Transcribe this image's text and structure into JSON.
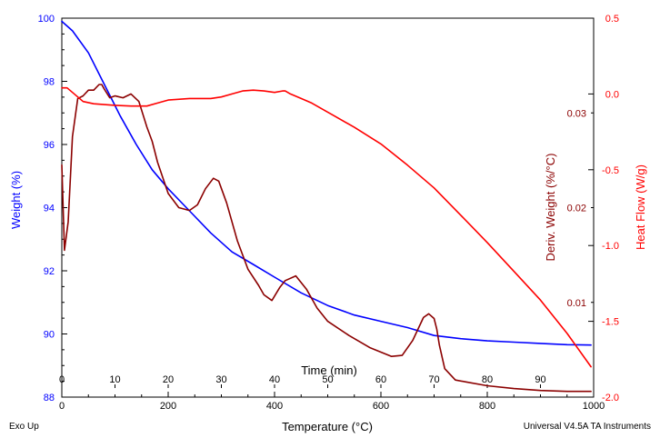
{
  "chart_data": {
    "type": "line",
    "title": "",
    "xlabel": "Temperature (°C)",
    "xlim": [
      0,
      1000
    ],
    "xticks": [
      0,
      200,
      400,
      600,
      800,
      1000
    ],
    "time_axis": {
      "label": "Time (min)",
      "ticks": [
        0,
        10,
        20,
        30,
        40,
        50,
        60,
        70,
        80,
        90
      ],
      "tick_positions_temperature": [
        0,
        100,
        200,
        300,
        400,
        500,
        600,
        700,
        800,
        900
      ]
    },
    "axes": {
      "weight": {
        "label": "Weight (%)",
        "ylim": [
          88,
          100
        ],
        "ticks": [
          88,
          90,
          92,
          94,
          96,
          98,
          100
        ],
        "color": "#0000ff"
      },
      "deriv": {
        "label": "Deriv. Weight (%/°C)",
        "ylim": [
          0.0,
          0.04
        ],
        "ticks": [
          0.01,
          0.02,
          0.03
        ],
        "color": "#8b0000"
      },
      "heat": {
        "label": "Heat Flow (W/g)",
        "ylim": [
          -2.0,
          0.5
        ],
        "ticks": [
          0.5,
          0.0,
          -0.5,
          -1.0,
          -1.5,
          -2.0
        ],
        "tick_labels": [
          "0.5",
          "0.0",
          "-0.5",
          "-1.0",
          "-1.5",
          "-2.0"
        ],
        "color": "#ff0000"
      }
    },
    "series": [
      {
        "name": "Weight",
        "axis": "weight",
        "color": "#0000ff",
        "x": [
          0,
          20,
          50,
          80,
          110,
          140,
          170,
          200,
          240,
          280,
          320,
          360,
          400,
          450,
          500,
          550,
          600,
          650,
          700,
          750,
          800,
          850,
          900,
          950,
          995
        ],
        "y": [
          99.9,
          99.6,
          98.9,
          97.9,
          96.9,
          96.0,
          95.2,
          94.6,
          93.9,
          93.2,
          92.6,
          92.2,
          91.8,
          91.3,
          90.9,
          90.6,
          90.4,
          90.2,
          89.95,
          89.85,
          89.78,
          89.74,
          89.7,
          89.66,
          89.65
        ]
      },
      {
        "name": "Deriv. Weight",
        "axis": "deriv",
        "color": "#8b0000",
        "x": [
          0,
          5,
          12,
          20,
          30,
          40,
          50,
          60,
          70,
          75,
          80,
          90,
          100,
          115,
          130,
          145,
          160,
          170,
          180,
          200,
          220,
          240,
          255,
          270,
          285,
          295,
          310,
          330,
          350,
          370,
          380,
          395,
          410,
          420,
          440,
          460,
          480,
          500,
          540,
          580,
          620,
          640,
          660,
          680,
          690,
          700,
          705,
          710,
          720,
          740,
          760,
          800,
          850,
          900,
          950,
          995
        ],
        "y": [
          0.0245,
          0.0155,
          0.0185,
          0.0275,
          0.0315,
          0.0318,
          0.0324,
          0.0324,
          0.033,
          0.033,
          0.0325,
          0.0316,
          0.0318,
          0.0316,
          0.032,
          0.0312,
          0.0285,
          0.027,
          0.0248,
          0.0215,
          0.02,
          0.0197,
          0.0203,
          0.022,
          0.0231,
          0.0228,
          0.0205,
          0.0165,
          0.0135,
          0.0118,
          0.0108,
          0.0102,
          0.0116,
          0.0123,
          0.0128,
          0.0114,
          0.0094,
          0.008,
          0.0065,
          0.0052,
          0.0043,
          0.0044,
          0.006,
          0.0084,
          0.0088,
          0.0083,
          0.0072,
          0.0055,
          0.003,
          0.0018,
          0.0016,
          0.0012,
          0.0009,
          0.0007,
          0.0006,
          0.0006
        ]
      },
      {
        "name": "Heat Flow",
        "axis": "heat",
        "color": "#ff0000",
        "x": [
          0,
          10,
          20,
          40,
          60,
          80,
          100,
          130,
          160,
          180,
          200,
          240,
          280,
          300,
          320,
          340,
          360,
          380,
          400,
          415,
          420,
          430,
          450,
          470,
          500,
          550,
          600,
          650,
          700,
          750,
          800,
          850,
          900,
          950,
          995
        ],
        "y": [
          0.04,
          0.04,
          0.01,
          -0.05,
          -0.065,
          -0.07,
          -0.075,
          -0.08,
          -0.08,
          -0.06,
          -0.04,
          -0.03,
          -0.03,
          -0.02,
          0.0,
          0.02,
          0.025,
          0.02,
          0.01,
          0.02,
          0.02,
          0.0,
          -0.03,
          -0.06,
          -0.12,
          -0.22,
          -0.33,
          -0.47,
          -0.62,
          -0.8,
          -0.98,
          -1.17,
          -1.36,
          -1.58,
          -1.8
        ]
      }
    ],
    "annotations": {
      "bottom_left": "Exo Up",
      "bottom_right": "Universal V4.5A TA Instruments"
    }
  }
}
